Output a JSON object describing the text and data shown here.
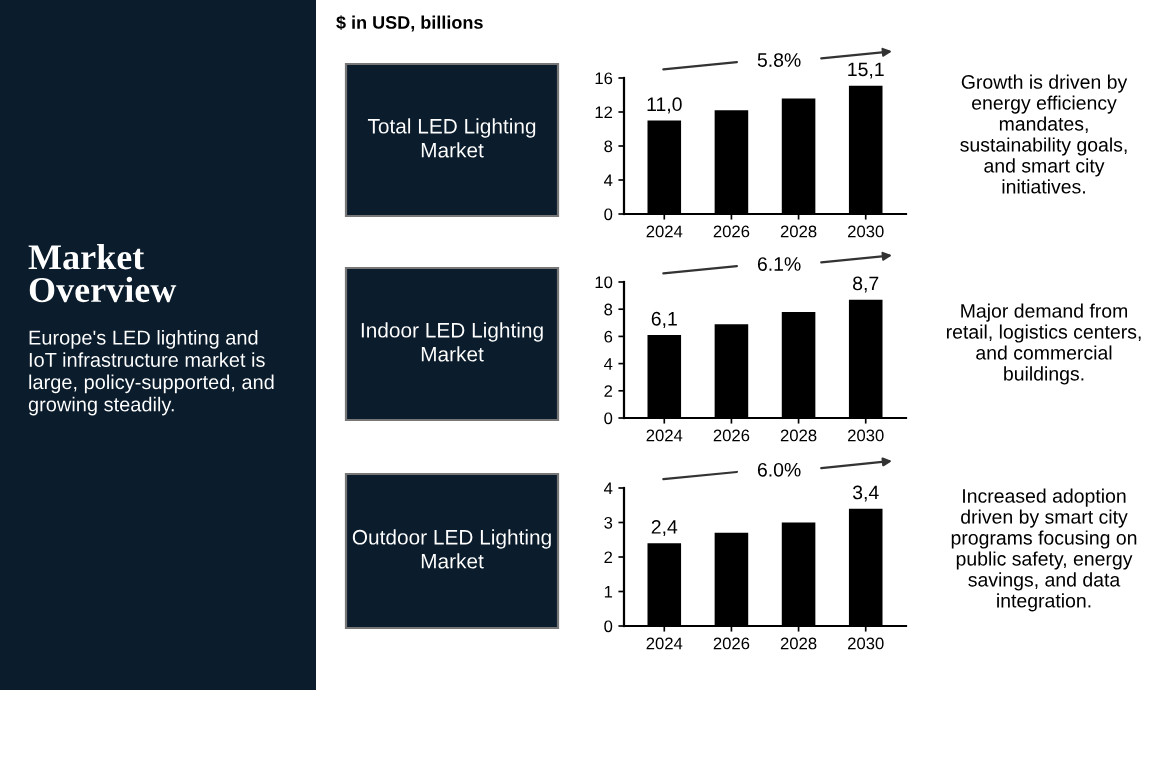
{
  "chart_data": [
    {
      "type": "other",
      "subtitle": "$ in USD, billions"
    },
    {
      "type": "other",
      "title": "Market\nOverview",
      "annotations": [
        "Europe's LED lighting and\nIoT infrastructure market is\nlarge, policy-supported, and\ngrowing steadily."
      ]
    },
    {
      "type": "bar",
      "title": "Total LED Lighting\nMarket",
      "categories": [
        "2024",
        "2026",
        "2028",
        "2030"
      ],
      "values": [
        11.0,
        12.2,
        13.6,
        15.1
      ],
      "value_labels": [
        "11,0",
        null,
        null,
        "15,1"
      ],
      "color": "#000000",
      "ylim": [
        0,
        16
      ],
      "yticks": [
        0,
        4,
        8,
        12,
        16
      ],
      "grid": false,
      "legend": false,
      "annotations": [
        "5.8%",
        "Growth is driven by\nenergy efficiency\nmandates,\nsustainability goals,\nand smart city\ninitiatives."
      ]
    },
    {
      "type": "bar",
      "title": "Indoor LED Lighting\nMarket",
      "categories": [
        "2024",
        "2026",
        "2028",
        "2030"
      ],
      "values": [
        6.1,
        6.9,
        7.8,
        8.7
      ],
      "value_labels": [
        "6,1",
        null,
        null,
        "8,7"
      ],
      "color": "#000000",
      "ylim": [
        0,
        10
      ],
      "yticks": [
        0,
        2,
        4,
        6,
        8,
        10
      ],
      "grid": false,
      "legend": false,
      "annotations": [
        "6.1%",
        "Major demand from\nretail, logistics centers,\nand commercial\nbuildings."
      ]
    },
    {
      "type": "bar",
      "title": "Outdoor LED Lighting\nMarket",
      "categories": [
        "2024",
        "2026",
        "2028",
        "2030"
      ],
      "values": [
        2.4,
        2.7,
        3.0,
        3.4
      ],
      "value_labels": [
        "2,4",
        null,
        null,
        "3,4"
      ],
      "color": "#000000",
      "ylim": [
        0,
        4
      ],
      "yticks": [
        0,
        1,
        2,
        3,
        4
      ],
      "grid": false,
      "legend": false,
      "annotations": [
        "6.0%",
        "Increased adoption\ndriven by smart city\nprograms focusing on\npublic safety, energy\nsavings, and data\nintegration."
      ]
    }
  ]
}
